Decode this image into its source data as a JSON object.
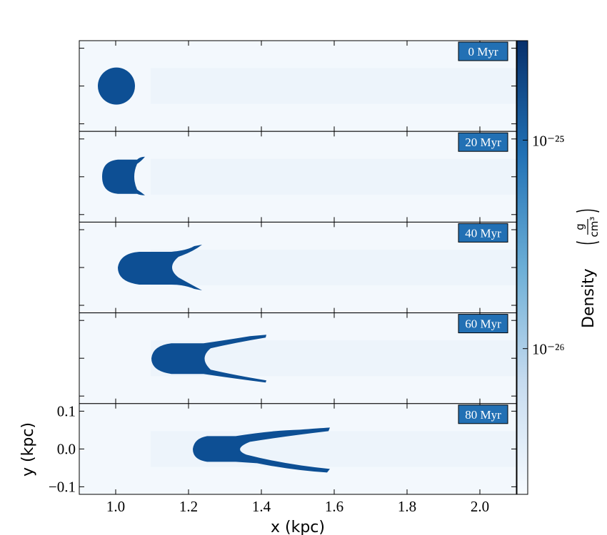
{
  "chart_data": {
    "type": "heatmap",
    "xlabel": "x  (kpc)",
    "ylabel": "y  (kpc)",
    "xlim": [
      0.9,
      2.1
    ],
    "xticks": [
      {
        "value": 1.0,
        "label": "1.0"
      },
      {
        "value": 1.2,
        "label": "1.2"
      },
      {
        "value": 1.4,
        "label": "1.4"
      },
      {
        "value": 1.6,
        "label": "1.6"
      },
      {
        "value": 1.8,
        "label": "1.8"
      },
      {
        "value": 2.0,
        "label": "2.0"
      }
    ],
    "ylim": [
      -0.12,
      0.12
    ],
    "yticks": [
      {
        "value": -0.1,
        "label": "−0.1"
      },
      {
        "value": 0,
        "label": "0.0"
      },
      {
        "value": 0.1,
        "label": "0.1"
      }
    ],
    "panels": [
      "0 Myr",
      "20 Myr",
      "40 Myr",
      "60 Myr",
      "80 Myr"
    ],
    "colorscale": "Blues",
    "colorbar": {
      "label": "Density",
      "unit_numerator": "g",
      "unit_denominator": "cm³",
      "log": true,
      "lim": [
        2e-27,
        3e-25
      ],
      "ticks": [
        {
          "value": 1e-26,
          "label": "10⁻²⁶"
        },
        {
          "value": 1e-25,
          "label": "10⁻²⁵"
        }
      ]
    }
  }
}
